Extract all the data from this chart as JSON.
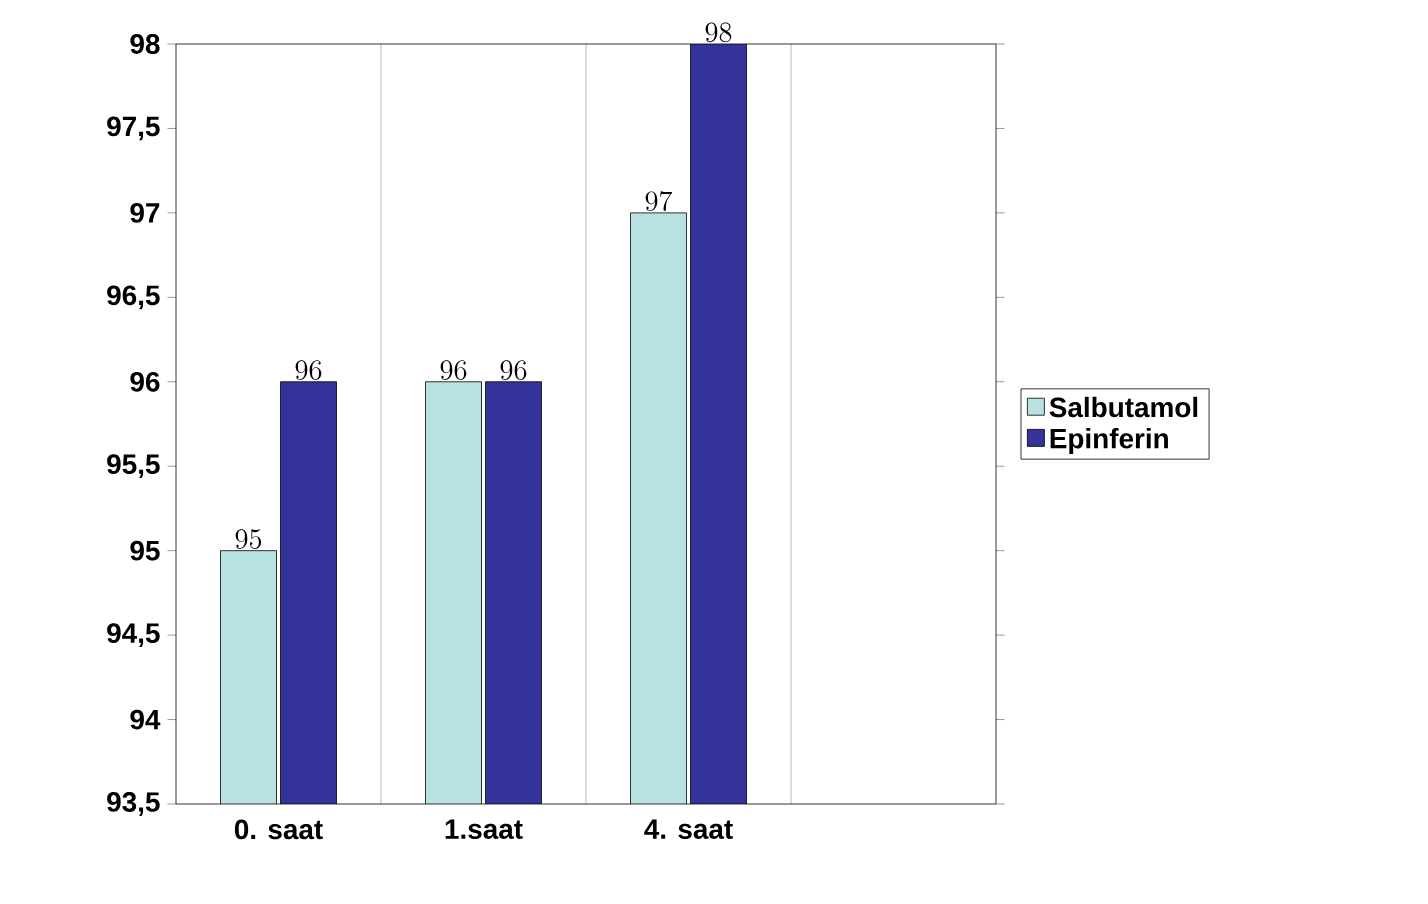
{
  "chart_data": {
    "type": "bar",
    "categories": [
      "0. saat",
      "1.saat",
      "4. saat",
      null
    ],
    "series": [
      {
        "name": "Salbutamol",
        "color": "#b8e2e2",
        "values": [
          95,
          96,
          97,
          null
        ]
      },
      {
        "name": "Epinferin",
        "color": "#333399",
        "values": [
          96,
          96,
          98,
          null
        ]
      }
    ],
    "ylim": [
      93.5,
      98
    ],
    "yticks": [
      {
        "value": 93.5,
        "label": "93,5"
      },
      94,
      {
        "value": 94.5,
        "label": "94,5"
      },
      95,
      {
        "value": 95.5,
        "label": "95,5"
      },
      96,
      {
        "value": 96.5,
        "label": "96,5"
      },
      97,
      {
        "value": 97.5,
        "label": "97,5"
      },
      98
    ],
    "grid": "x",
    "legend": "right",
    "data_labels": true
  }
}
